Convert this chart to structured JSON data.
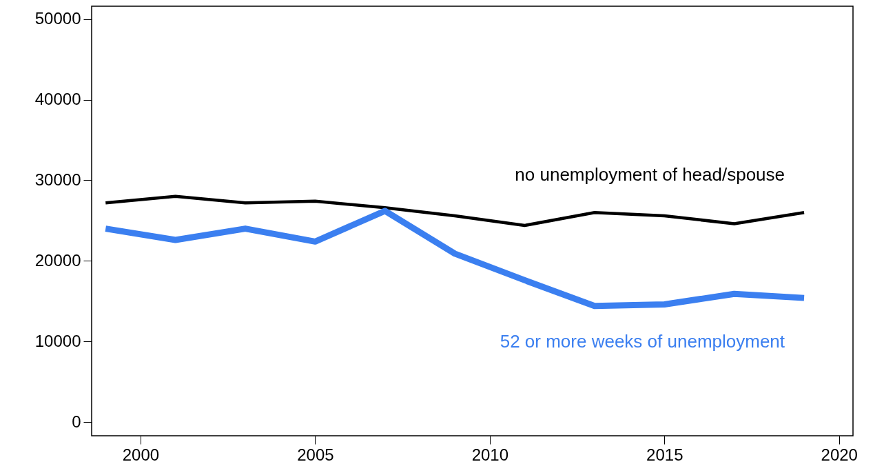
{
  "chart_data": {
    "type": "line",
    "x": [
      1999,
      2001,
      2003,
      2005,
      2007,
      2009,
      2011,
      2013,
      2015,
      2017,
      2019
    ],
    "series": [
      {
        "name": "no unemployment of head/spouse",
        "color": "#000000",
        "values": [
          27200,
          28000,
          27200,
          27400,
          26600,
          25600,
          24400,
          26000,
          25600,
          24600,
          26000
        ]
      },
      {
        "name": "52 or more weeks of unemployment",
        "color": "#3b7ff0",
        "values": [
          24000,
          22600,
          24000,
          22400,
          26200,
          20900,
          17600,
          14400,
          14600,
          15900,
          15400
        ]
      }
    ],
    "xlim": [
      1998.6,
      2020.4
    ],
    "xticks": [
      2000,
      2005,
      2010,
      2015,
      2020
    ],
    "ylim": [
      -1700,
      51600
    ],
    "yticks": [
      0,
      10000,
      20000,
      30000,
      40000,
      50000
    ],
    "grid": false
  }
}
